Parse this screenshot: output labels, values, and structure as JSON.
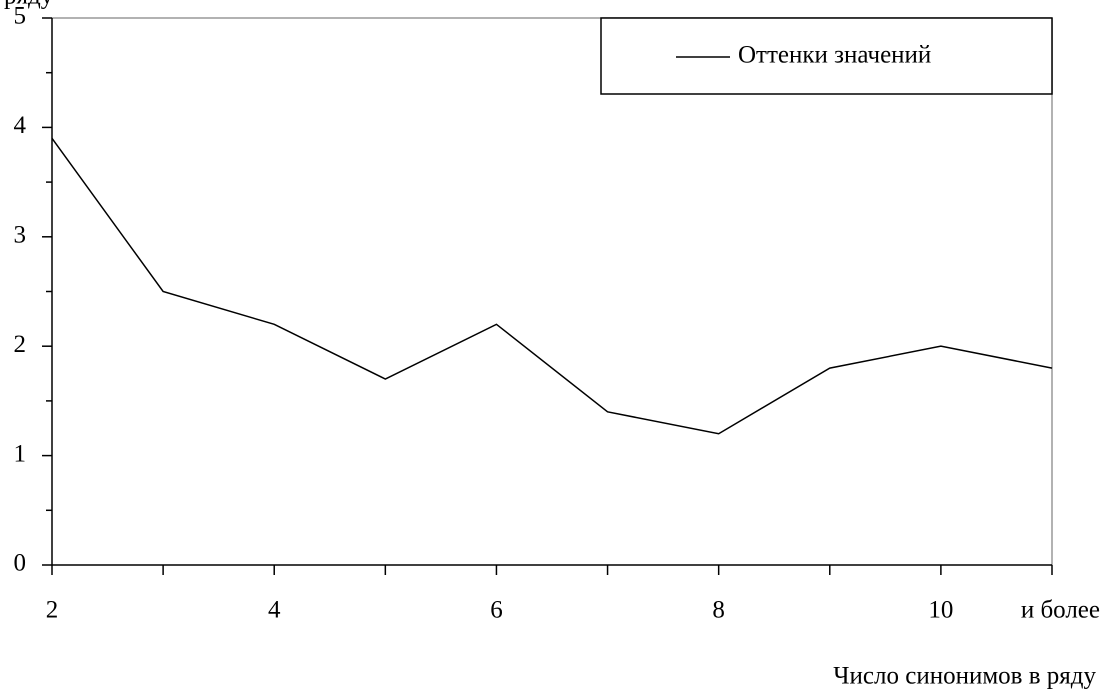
{
  "chart_data": {
    "type": "line",
    "y_label": "ряду",
    "x_label": "Число синонимов в ряду",
    "categories": [
      "2",
      null,
      "4",
      null,
      "6",
      null,
      "8",
      null,
      "10",
      "и более"
    ],
    "series": [
      {
        "name": "Оттенки значений",
        "color": "#000000",
        "values": [
          3.9,
          2.5,
          2.2,
          1.7,
          2.2,
          1.4,
          1.2,
          1.8,
          2.0,
          1.8
        ]
      }
    ],
    "ylim": [
      0,
      5
    ],
    "yticks": [
      0,
      1,
      2,
      3,
      4,
      5
    ],
    "legend": "top-right"
  }
}
